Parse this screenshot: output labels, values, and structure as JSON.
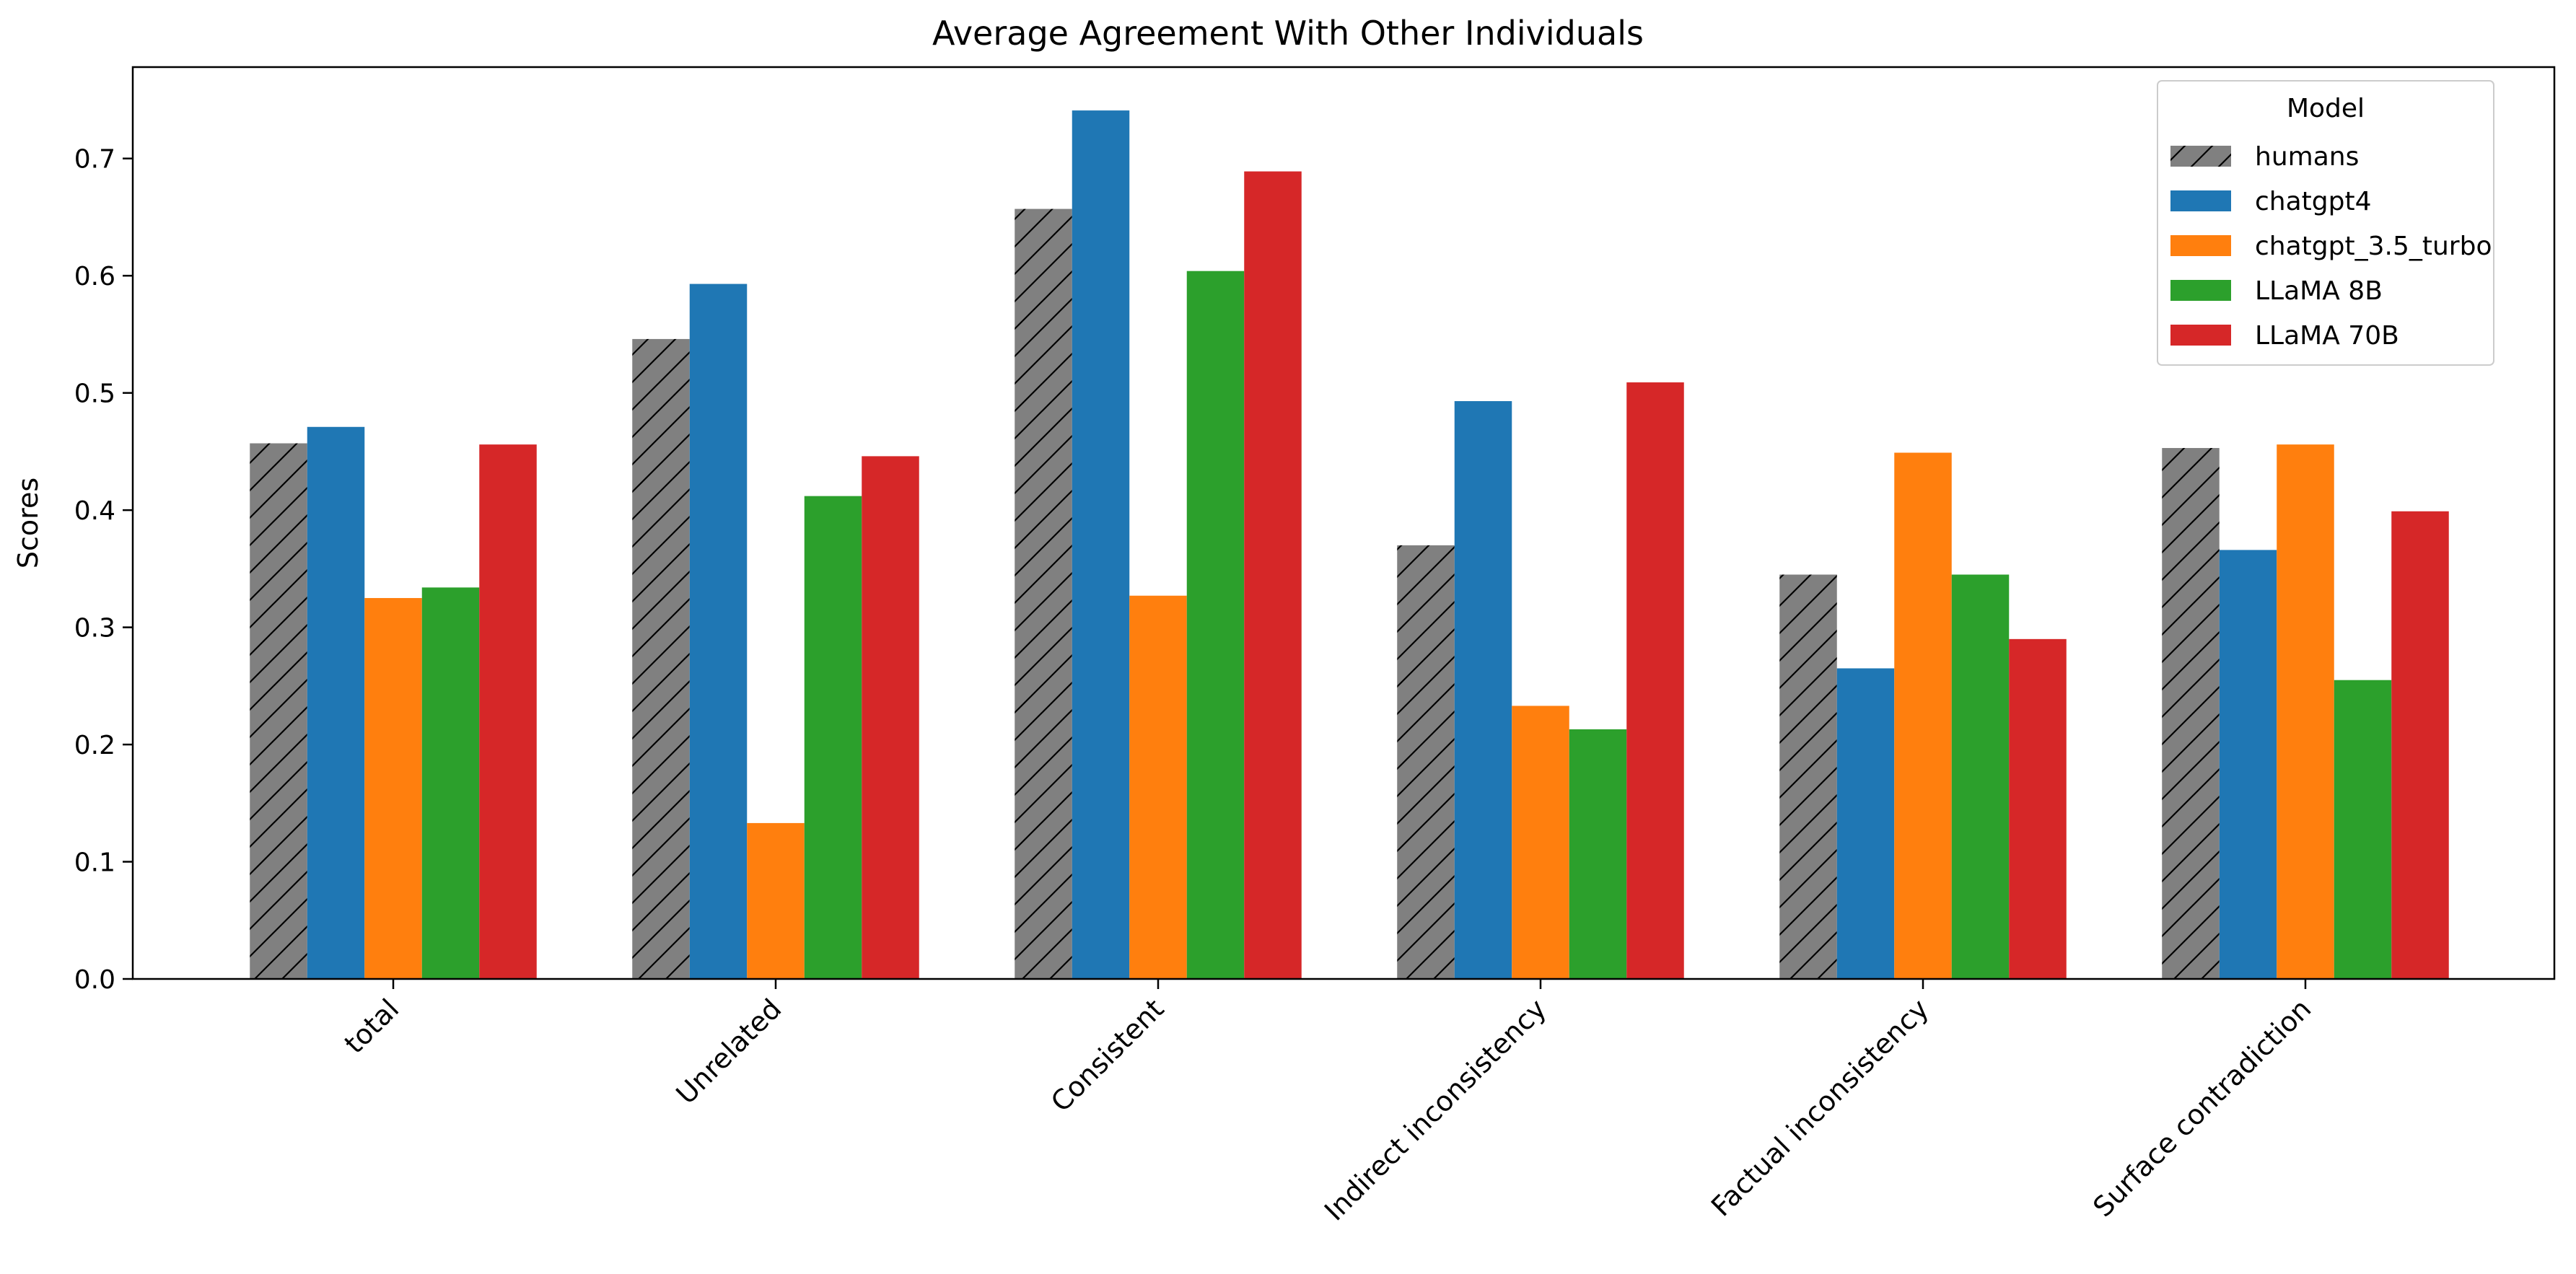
{
  "chart_data": {
    "type": "bar",
    "title": "Average Agreement With Other Individuals",
    "xlabel": "",
    "ylabel": "Scores",
    "ylim": [
      0,
      0.778
    ],
    "yticks": [
      0.0,
      0.1,
      0.2,
      0.3,
      0.4,
      0.5,
      0.6,
      0.7
    ],
    "ytick_labels": [
      "0.0",
      "0.1",
      "0.2",
      "0.3",
      "0.4",
      "0.5",
      "0.6",
      "0.7"
    ],
    "grid": false,
    "legend": {
      "title": "Model",
      "placement": "top-right"
    },
    "categories": [
      "total",
      "Unrelated",
      "Consistent",
      "Indirect inconsistency",
      "Factual inconsistency",
      "Surface contradiction"
    ],
    "series": [
      {
        "name": "humans",
        "color": "#808080",
        "hatch": true,
        "values": [
          0.457,
          0.546,
          0.657,
          0.37,
          0.345,
          0.453
        ]
      },
      {
        "name": "chatgpt4",
        "color": "#1f77b4",
        "hatch": false,
        "values": [
          0.471,
          0.593,
          0.741,
          0.493,
          0.265,
          0.366
        ]
      },
      {
        "name": "chatgpt_3.5_turbo",
        "color": "#ff7f0e",
        "hatch": false,
        "values": [
          0.325,
          0.133,
          0.327,
          0.233,
          0.449,
          0.456
        ]
      },
      {
        "name": "LLaMA 8B",
        "color": "#2ca02c",
        "hatch": false,
        "values": [
          0.334,
          0.412,
          0.604,
          0.213,
          0.345,
          0.255
        ]
      },
      {
        "name": "LLaMA 70B",
        "color": "#d62728",
        "hatch": false,
        "values": [
          0.456,
          0.446,
          0.689,
          0.509,
          0.29,
          0.399
        ]
      }
    ]
  }
}
